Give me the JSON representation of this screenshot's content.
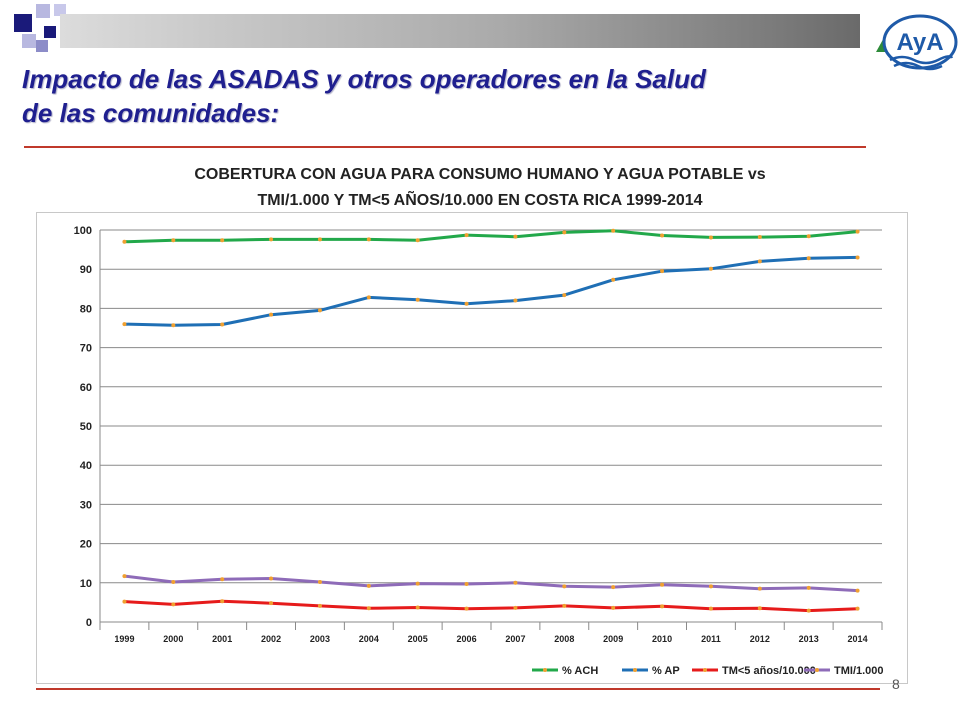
{
  "slide": {
    "title_line1": "Impacto de las ASADAS y otros operadores en la Salud",
    "title_line2": "de las comunidades:",
    "page_number": "8",
    "logo_text": "AyA",
    "accent_color": "#c0392b",
    "title_color": "#1f1f8f"
  },
  "chart_data": {
    "type": "line",
    "title_line1": "COBERTURA CON AGUA PARA CONSUMO HUMANO  Y AGUA POTABLE vs",
    "title_line2": "TMI/1.000 Y TM<5 AÑOS/10.000 EN COSTA RICA 1999-2014",
    "xlabel": "",
    "ylabel": "",
    "categories": [
      "1999",
      "2000",
      "2001",
      "2002",
      "2003",
      "2004",
      "2005",
      "2006",
      "2007",
      "2008",
      "2009",
      "2010",
      "2011",
      "2012",
      "2013",
      "2014"
    ],
    "yticks": [
      "0",
      "10",
      "20",
      "30",
      "40",
      "50",
      "60",
      "70",
      "80",
      "90",
      "100"
    ],
    "ylim": [
      0,
      100
    ],
    "grid": true,
    "legend_position": "bottom-right",
    "series": [
      {
        "name": "% ACH",
        "color": "#22a84a",
        "values": [
          97.0,
          97.4,
          97.4,
          97.6,
          97.6,
          97.6,
          97.4,
          98.7,
          98.3,
          99.4,
          99.8,
          98.6,
          98.1,
          98.2,
          98.4,
          99.6
        ]
      },
      {
        "name": "% AP",
        "color": "#1f6fb5",
        "values": [
          76.0,
          75.7,
          75.9,
          78.4,
          79.5,
          82.8,
          82.2,
          81.2,
          82.0,
          83.4,
          87.3,
          89.5,
          90.1,
          92.0,
          92.8,
          93.0
        ]
      },
      {
        "name": "TM<5 años/10.000",
        "color": "#e61b1b",
        "values": [
          5.2,
          4.5,
          5.3,
          4.8,
          4.1,
          3.5,
          3.7,
          3.4,
          3.6,
          4.1,
          3.6,
          4.0,
          3.4,
          3.5,
          2.9,
          3.4
        ]
      },
      {
        "name": "TMI/1.000",
        "color": "#8e6bb8",
        "values": [
          11.7,
          10.2,
          10.9,
          11.1,
          10.2,
          9.2,
          9.8,
          9.7,
          10.0,
          9.1,
          8.9,
          9.5,
          9.1,
          8.5,
          8.7,
          8.0
        ]
      }
    ],
    "marker_color": "#f0a030"
  }
}
